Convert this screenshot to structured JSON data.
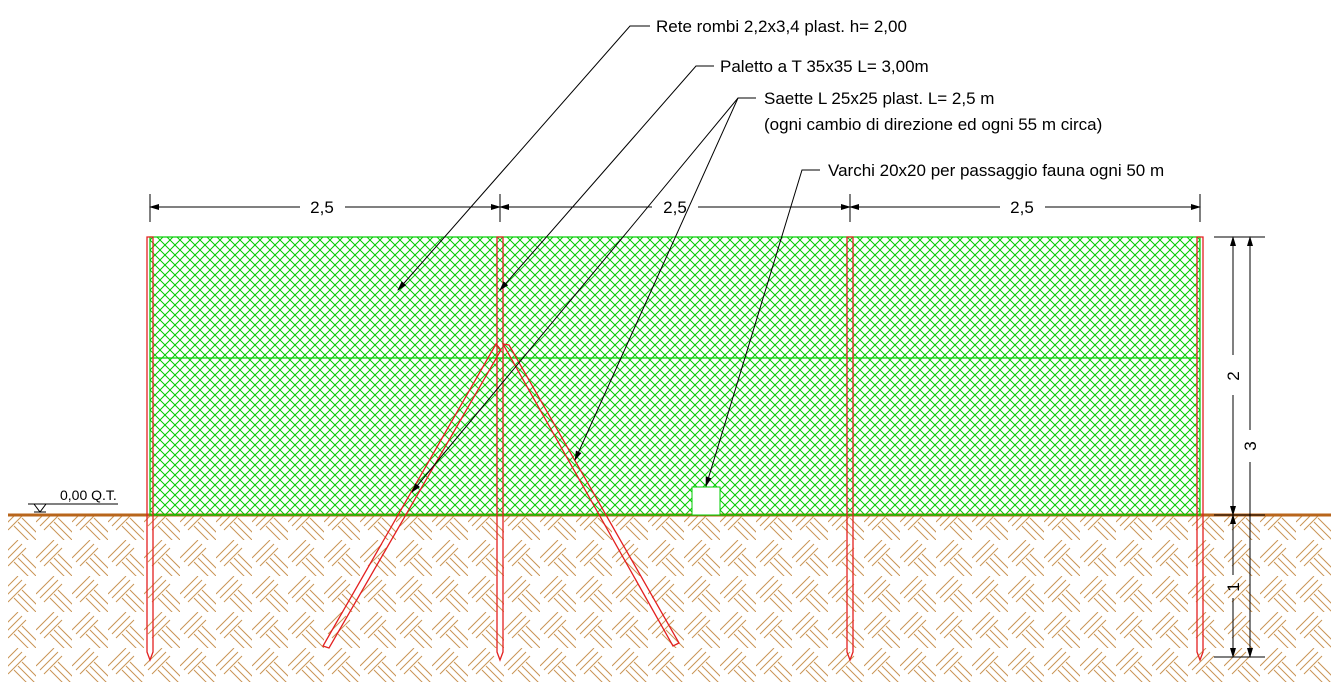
{
  "colors": {
    "mesh": "#00cc00",
    "post": "#e32020",
    "ground_line": "#b8651b",
    "ground_hatch": "#c99455",
    "dimension": "#000000"
  },
  "annotations": {
    "net": "Rete rombi 2,2x3,4 plast. h= 2,00",
    "post": "Paletto a T 35x35 L= 3,00m",
    "braces_line1": "Saette L 25x25 plast. L= 2,5 m",
    "braces_line2": "(ogni cambio di direzione ed ogni 55 m circa)",
    "gaps": "Varchi 20x20 per passaggio fauna ogni 50 m"
  },
  "ground_level_label": "0,00 Q.T.",
  "horizontal_dimensions": [
    "2,5",
    "2,5",
    "2,5"
  ],
  "vertical_dimensions": {
    "above_ground": "2",
    "total": "3",
    "below_ground": "1"
  }
}
